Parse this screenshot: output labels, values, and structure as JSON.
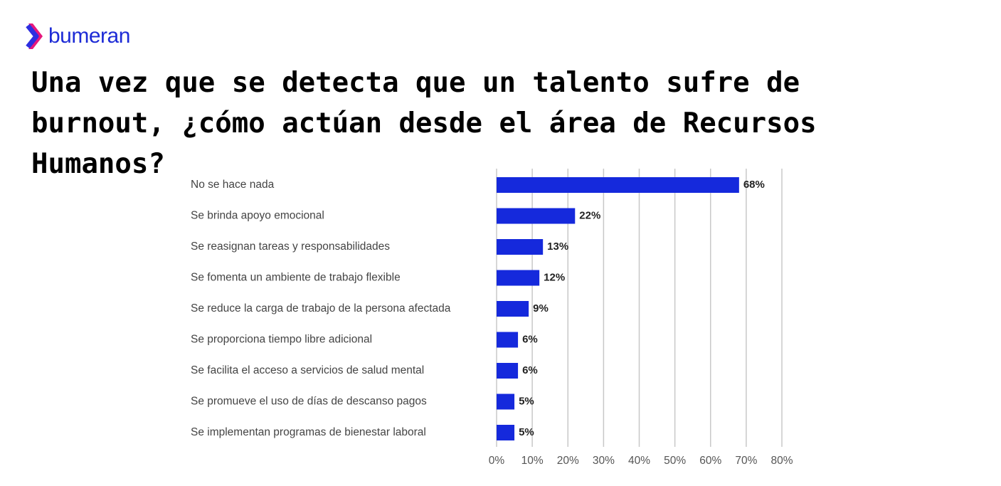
{
  "brand": "bumeran",
  "chart_data": {
    "type": "bar",
    "orientation": "horizontal",
    "title": "Una vez que se detecta que un talento sufre de burnout, ¿cómo actúan desde el área de Recursos Humanos?",
    "categories": [
      "No se hace nada",
      "Se brinda apoyo emocional",
      "Se reasignan tareas y responsabilidades",
      "Se fomenta un ambiente de trabajo flexible",
      "Se reduce la carga de trabajo de la persona afectada",
      "Se proporciona tiempo libre adicional",
      "Se facilita el acceso a servicios de salud mental",
      "Se promueve el uso de días de descanso pagos",
      "Se implementan programas de bienestar laboral"
    ],
    "values": [
      68,
      22,
      13,
      12,
      9,
      6,
      6,
      5,
      5
    ],
    "value_labels": [
      "68%",
      "22%",
      "13%",
      "12%",
      "9%",
      "6%",
      "6%",
      "5%",
      "5%"
    ],
    "color": "#1529dc",
    "xlim": [
      0,
      80
    ],
    "xticks": [
      {
        "value": 0,
        "label": "0%"
      },
      {
        "value": 10,
        "label": "10%"
      },
      {
        "value": 20,
        "label": "20%"
      },
      {
        "value": 30,
        "label": "30%"
      },
      {
        "value": 40,
        "label": "40%"
      },
      {
        "value": 50,
        "label": "50%"
      },
      {
        "value": 60,
        "label": "60%"
      },
      {
        "value": 70,
        "label": "70%"
      },
      {
        "value": 80,
        "label": "80%"
      }
    ],
    "grid": true
  }
}
